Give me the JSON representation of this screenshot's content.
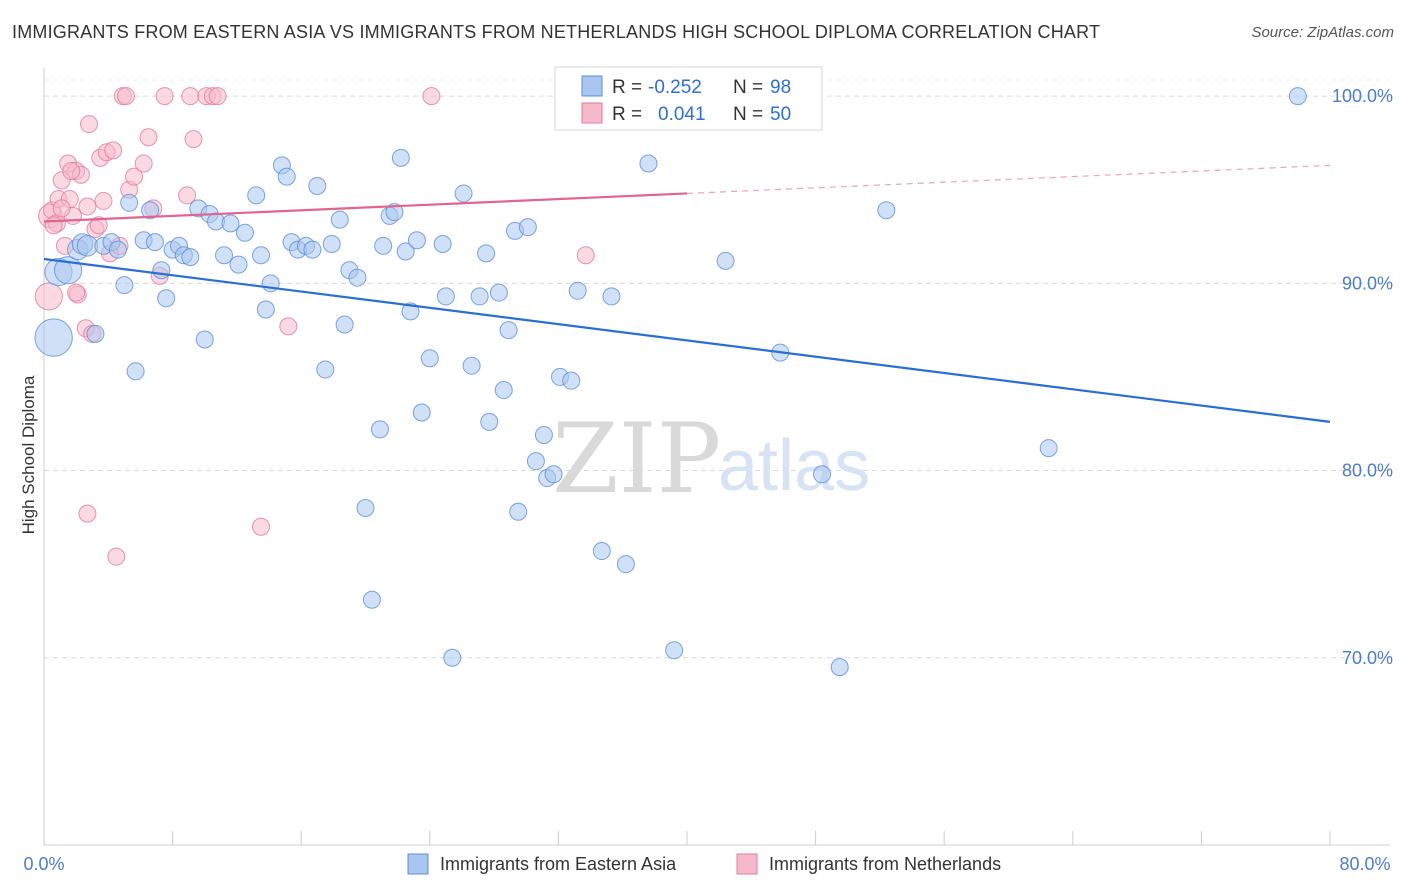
{
  "header": {
    "title": "IMMIGRANTS FROM EASTERN ASIA VS IMMIGRANTS FROM NETHERLANDS HIGH SCHOOL DIPLOMA CORRELATION CHART",
    "source": "Source: ZipAtlas.com"
  },
  "watermark": {
    "zip": "ZIP",
    "atlas": "atlas"
  },
  "colors": {
    "blue_fill": "#a9c6ee",
    "blue_stroke": "#5b8fd6",
    "blue_line": "#2a6fd0",
    "pink_fill": "#f6b9cc",
    "pink_stroke": "#e07a9c",
    "pink_line": "#e0658e",
    "grid": "#d9d9d9",
    "tick_label": "#4d7cc9"
  },
  "legend": {
    "rows": [
      {
        "r_label": "R =",
        "r_value": "-0.252",
        "n_label": "N =",
        "n_value": "98"
      },
      {
        "r_label": "R =",
        "r_value": "0.041",
        "n_label": "N =",
        "n_value": "50"
      }
    ]
  },
  "chart_data": {
    "type": "scatter",
    "xlabel": "",
    "ylabel": "High School Diploma",
    "xlim": [
      0,
      80
    ],
    "ylim": [
      60,
      101.5
    ],
    "x_tick_labels": [
      "0.0%",
      "80.0%"
    ],
    "y_ticks": [
      70,
      80,
      90,
      100
    ],
    "y_tick_labels": [
      "70.0%",
      "80.0%",
      "90.0%",
      "100.0%"
    ],
    "grid": true,
    "legend_position": "top-center",
    "series": [
      {
        "name": "Immigrants from Eastern Asia",
        "color": "#a9c6ee",
        "trend": {
          "x": [
            0,
            80
          ],
          "y": [
            91.3,
            82.6
          ]
        },
        "points": [
          [
            0.6,
            87.1,
            2.2
          ],
          [
            0.9,
            90.6,
            1.6
          ],
          [
            1.5,
            90.7,
            1.6
          ],
          [
            2.1,
            91.8,
            1.2
          ],
          [
            2.4,
            92.1,
            1.2
          ],
          [
            2.7,
            92.0,
            1.2
          ],
          [
            3.2,
            87.3,
            1.0
          ],
          [
            3.7,
            92.0,
            1.0
          ],
          [
            4.2,
            92.2,
            1.0
          ],
          [
            4.6,
            91.8,
            1.0
          ],
          [
            5.0,
            89.9,
            1.0
          ],
          [
            5.3,
            94.3,
            1.0
          ],
          [
            5.7,
            85.3,
            1.0
          ],
          [
            6.2,
            92.3,
            1.0
          ],
          [
            6.6,
            93.9,
            1.0
          ],
          [
            6.9,
            92.2,
            1.0
          ],
          [
            7.3,
            90.7,
            1.0
          ],
          [
            7.6,
            89.2,
            1.0
          ],
          [
            8.0,
            91.8,
            1.0
          ],
          [
            8.4,
            92.0,
            1.0
          ],
          [
            8.7,
            91.5,
            1.0
          ],
          [
            9.1,
            91.4,
            1.0
          ],
          [
            9.6,
            94.0,
            1.0
          ],
          [
            10.0,
            87.0,
            1.0
          ],
          [
            10.3,
            93.7,
            1.0
          ],
          [
            10.7,
            93.3,
            1.0
          ],
          [
            11.2,
            91.5,
            1.0
          ],
          [
            11.6,
            93.2,
            1.0
          ],
          [
            12.1,
            91.0,
            1.0
          ],
          [
            12.5,
            92.7,
            1.0
          ],
          [
            13.2,
            94.7,
            1.0
          ],
          [
            13.5,
            91.5,
            1.0
          ],
          [
            13.8,
            88.6,
            1.0
          ],
          [
            14.1,
            90.0,
            1.0
          ],
          [
            14.8,
            96.3,
            1.0
          ],
          [
            15.1,
            95.7,
            1.0
          ],
          [
            15.4,
            92.2,
            1.0
          ],
          [
            15.8,
            91.8,
            1.0
          ],
          [
            16.3,
            92.0,
            1.0
          ],
          [
            16.7,
            91.8,
            1.0
          ],
          [
            17.0,
            95.2,
            1.0
          ],
          [
            17.5,
            85.4,
            1.0
          ],
          [
            17.9,
            92.1,
            1.0
          ],
          [
            18.4,
            93.4,
            1.0
          ],
          [
            18.7,
            87.8,
            1.0
          ],
          [
            19.0,
            90.7,
            1.0
          ],
          [
            19.5,
            90.3,
            1.0
          ],
          [
            20.0,
            78.0,
            1.0
          ],
          [
            20.4,
            73.1,
            1.0
          ],
          [
            20.9,
            82.2,
            1.0
          ],
          [
            21.1,
            92.0,
            1.0
          ],
          [
            21.5,
            93.6,
            1.0
          ],
          [
            21.8,
            93.8,
            1.0
          ],
          [
            22.2,
            96.7,
            1.0
          ],
          [
            22.5,
            91.7,
            1.0
          ],
          [
            22.8,
            88.5,
            1.0
          ],
          [
            23.2,
            92.3,
            1.0
          ],
          [
            23.5,
            83.1,
            1.0
          ],
          [
            24.0,
            86.0,
            1.0
          ],
          [
            24.8,
            92.1,
            1.0
          ],
          [
            25.0,
            89.3,
            1.0
          ],
          [
            25.4,
            70.0,
            1.0
          ],
          [
            26.1,
            94.8,
            1.0
          ],
          [
            26.6,
            85.6,
            1.0
          ],
          [
            27.1,
            89.3,
            1.0
          ],
          [
            27.5,
            91.6,
            1.0
          ],
          [
            27.7,
            82.6,
            1.0
          ],
          [
            28.3,
            89.5,
            1.0
          ],
          [
            28.6,
            84.3,
            1.0
          ],
          [
            28.9,
            87.5,
            1.0
          ],
          [
            29.3,
            92.8,
            1.0
          ],
          [
            29.5,
            77.8,
            1.0
          ],
          [
            30.1,
            93.0,
            1.0
          ],
          [
            30.6,
            80.5,
            1.0
          ],
          [
            31.1,
            81.9,
            1.0
          ],
          [
            31.3,
            79.6,
            1.0
          ],
          [
            31.7,
            79.8,
            1.0
          ],
          [
            32.1,
            85.0,
            1.0
          ],
          [
            32.8,
            84.8,
            1.0
          ],
          [
            33.2,
            89.6,
            1.0
          ],
          [
            34.7,
            75.7,
            1.0
          ],
          [
            35.3,
            89.3,
            1.0
          ],
          [
            36.2,
            75.0,
            1.0
          ],
          [
            37.6,
            96.4,
            1.0
          ],
          [
            39.2,
            70.4,
            1.0
          ],
          [
            42.4,
            91.2,
            1.0
          ],
          [
            45.8,
            86.3,
            1.0
          ],
          [
            48.4,
            79.8,
            1.0
          ],
          [
            49.5,
            69.5,
            1.0
          ],
          [
            52.4,
            93.9,
            1.0
          ],
          [
            62.5,
            81.2,
            1.0
          ],
          [
            78.0,
            100.0,
            1.0
          ],
          [
            38.0,
            100.0,
            1.0
          ]
        ]
      },
      {
        "name": "Immigrants from Netherlands",
        "color": "#f6b9cc",
        "trend": {
          "x": [
            0,
            40
          ],
          "y": [
            93.3,
            94.8
          ]
        },
        "trend_dashed": {
          "x": [
            40,
            80
          ],
          "y": [
            94.8,
            96.3
          ]
        },
        "points": [
          [
            0.3,
            89.3,
            1.6
          ],
          [
            0.4,
            93.6,
            1.4
          ],
          [
            0.5,
            93.9,
            1.0
          ],
          [
            0.8,
            93.2,
            1.0
          ],
          [
            0.9,
            94.5,
            1.0
          ],
          [
            1.1,
            95.5,
            1.0
          ],
          [
            1.3,
            92.0,
            1.0
          ],
          [
            1.5,
            96.4,
            1.0
          ],
          [
            1.6,
            94.5,
            1.0
          ],
          [
            1.8,
            93.6,
            1.0
          ],
          [
            2.0,
            96.0,
            1.0
          ],
          [
            2.1,
            89.4,
            1.0
          ],
          [
            2.3,
            95.8,
            1.0
          ],
          [
            2.6,
            87.6,
            1.0
          ],
          [
            2.7,
            94.1,
            1.0
          ],
          [
            2.8,
            98.5,
            1.0
          ],
          [
            3.0,
            87.3,
            1.0
          ],
          [
            3.2,
            92.9,
            1.0
          ],
          [
            3.5,
            96.7,
            1.0
          ],
          [
            3.7,
            94.4,
            1.0
          ],
          [
            3.9,
            97.0,
            1.0
          ],
          [
            4.1,
            91.6,
            1.0
          ],
          [
            4.3,
            97.1,
            1.0
          ],
          [
            4.5,
            75.4,
            1.0
          ],
          [
            4.7,
            92.0,
            1.0
          ],
          [
            4.9,
            100.0,
            1.0
          ],
          [
            5.1,
            100.0,
            1.0
          ],
          [
            5.3,
            95.0,
            1.0
          ],
          [
            5.6,
            95.7,
            1.0
          ],
          [
            6.2,
            96.4,
            1.0
          ],
          [
            6.5,
            97.8,
            1.0
          ],
          [
            6.8,
            94.0,
            1.0
          ],
          [
            7.2,
            90.4,
            1.0
          ],
          [
            7.5,
            100.0,
            1.0
          ],
          [
            8.9,
            94.7,
            1.0
          ],
          [
            9.1,
            100.0,
            1.0
          ],
          [
            9.3,
            97.7,
            1.0
          ],
          [
            10.1,
            100.0,
            1.0
          ],
          [
            10.5,
            100.0,
            1.0
          ],
          [
            10.8,
            100.0,
            1.0
          ],
          [
            13.5,
            77.0,
            1.0
          ],
          [
            15.2,
            87.7,
            1.0
          ],
          [
            24.1,
            100.0,
            1.0
          ],
          [
            33.7,
            91.5,
            1.0
          ],
          [
            2.7,
            77.7,
            1.0
          ],
          [
            2.0,
            89.5,
            1.0
          ],
          [
            1.1,
            94.0,
            1.0
          ],
          [
            1.7,
            96.0,
            1.0
          ],
          [
            3.4,
            93.1,
            1.0
          ],
          [
            0.6,
            93.1,
            1.0
          ]
        ]
      }
    ]
  }
}
